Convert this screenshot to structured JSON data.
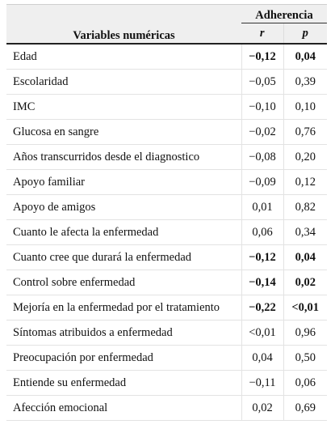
{
  "table": {
    "header": {
      "variable_col": "Variables numéricas",
      "group": "Adherencia",
      "r": "r",
      "p": "p"
    },
    "rows": [
      {
        "name": "Edad",
        "r": "−0,12",
        "p": "0,04",
        "bold": true
      },
      {
        "name": "Escolaridad",
        "r": "−0,05",
        "p": "0,39",
        "bold": false
      },
      {
        "name": "IMC",
        "r": "−0,10",
        "p": "0,10",
        "bold": false
      },
      {
        "name": "Glucosa en sangre",
        "r": "−0,02",
        "p": "0,76",
        "bold": false
      },
      {
        "name": "Años transcurridos desde el diagnostico",
        "r": "−0,08",
        "p": "0,20",
        "bold": false
      },
      {
        "name": "Apoyo familiar",
        "r": "−0,09",
        "p": "0,12",
        "bold": false
      },
      {
        "name": "Apoyo de amigos",
        "r": "0,01",
        "p": "0,82",
        "bold": false
      },
      {
        "name": "Cuanto le afecta la enfermedad",
        "r": "0,06",
        "p": "0,34",
        "bold": false
      },
      {
        "name": "Cuanto cree que durará la enfermedad",
        "r": "−0,12",
        "p": "0,04",
        "bold": true
      },
      {
        "name": "Control sobre enfermedad",
        "r": "−0,14",
        "p": "0,02",
        "bold": true
      },
      {
        "name": "Mejoría en la enfermedad por el tratamiento",
        "r": "−0,22",
        "p": "<0,01",
        "bold": true
      },
      {
        "name": "Síntomas atribuidos a enfermedad",
        "r": "<0,01",
        "p": "0,96",
        "bold": false
      },
      {
        "name": "Preocupación por enfermedad",
        "r": "0,04",
        "p": "0,50",
        "bold": false
      },
      {
        "name": "Entiende su enfermedad",
        "r": "−0,11",
        "p": "0,06",
        "bold": false
      },
      {
        "name": "Afección emocional",
        "r": "0,02",
        "p": "0,69",
        "bold": false
      }
    ]
  }
}
